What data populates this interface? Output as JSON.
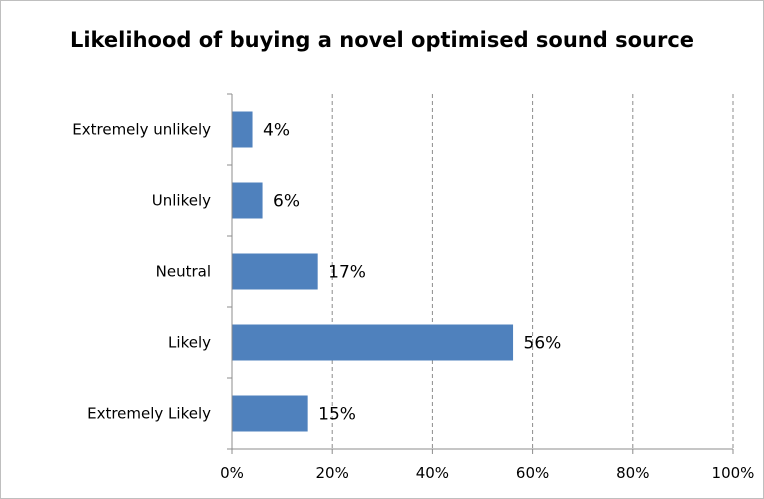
{
  "chart_data": {
    "type": "bar",
    "orientation": "horizontal",
    "title": "Likelihood of buying a novel optimised sound source",
    "categories": [
      "Extremely unlikely",
      "Unlikely",
      "Neutral",
      "Likely",
      "Extremely Likely"
    ],
    "values": [
      4,
      6,
      17,
      56,
      15
    ],
    "data_labels": [
      "4%",
      "6%",
      "17%",
      "56%",
      "15%"
    ],
    "x_ticks": [
      "0%",
      "20%",
      "40%",
      "60%",
      "80%",
      "100%"
    ],
    "xlim": [
      0,
      100
    ],
    "xlabel": "",
    "ylabel": "",
    "grid": "vertical dashed",
    "legend": "none",
    "bar_color": "#4F81BD"
  }
}
